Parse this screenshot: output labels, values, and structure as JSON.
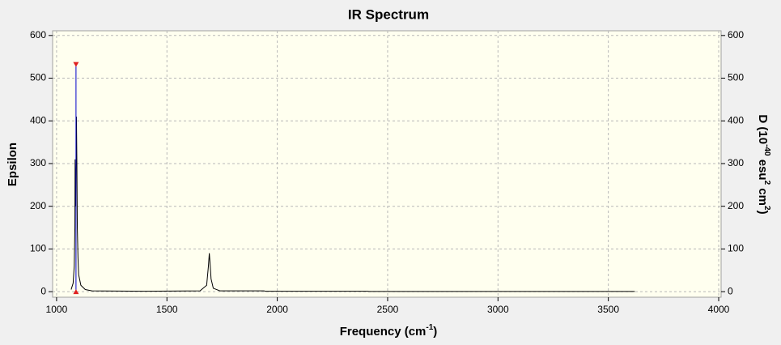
{
  "chart_data": {
    "type": "line",
    "title": "IR Spectrum",
    "xlabel_parts": [
      "Frequency (cm",
      "-1",
      ")"
    ],
    "ylabel": "Epsilon",
    "y2label_parts": [
      "D (10",
      "-40",
      " esu",
      "2",
      " cm",
      "2",
      ")"
    ],
    "x": [
      1066,
      1075,
      1080,
      1083,
      1084,
      1086,
      1088,
      1090,
      1092,
      1094,
      1097,
      1100,
      1110,
      1130,
      1160,
      1400,
      1650,
      1680,
      1688,
      1692,
      1695,
      1700,
      1710,
      1740,
      1940,
      1945,
      2410,
      2415,
      3620
    ],
    "series": [
      {
        "color": "#000000",
        "values": [
          5,
          20,
          60,
          150,
          310,
          200,
          280,
          410,
          300,
          150,
          80,
          40,
          15,
          5,
          2,
          1,
          2,
          15,
          60,
          90,
          70,
          30,
          8,
          2,
          2,
          1,
          1,
          0.5,
          0.5
        ]
      }
    ],
    "sticks": {
      "x": [
        1088
      ],
      "values": [
        532
      ],
      "color": "#0000cc",
      "marker_color": "#e02020"
    },
    "xlim": [
      982,
      4011
    ],
    "xticks": [
      1000,
      1500,
      2000,
      2500,
      3000,
      3500,
      4000
    ],
    "ylim": [
      -13,
      611
    ],
    "yticks": [
      0,
      100,
      200,
      300,
      400,
      500,
      600
    ],
    "y2lim": [
      -13,
      611
    ],
    "y2ticks": [
      0,
      100,
      200,
      300,
      400,
      500,
      600
    ],
    "grid": true,
    "plot_background": "#ffffef"
  }
}
